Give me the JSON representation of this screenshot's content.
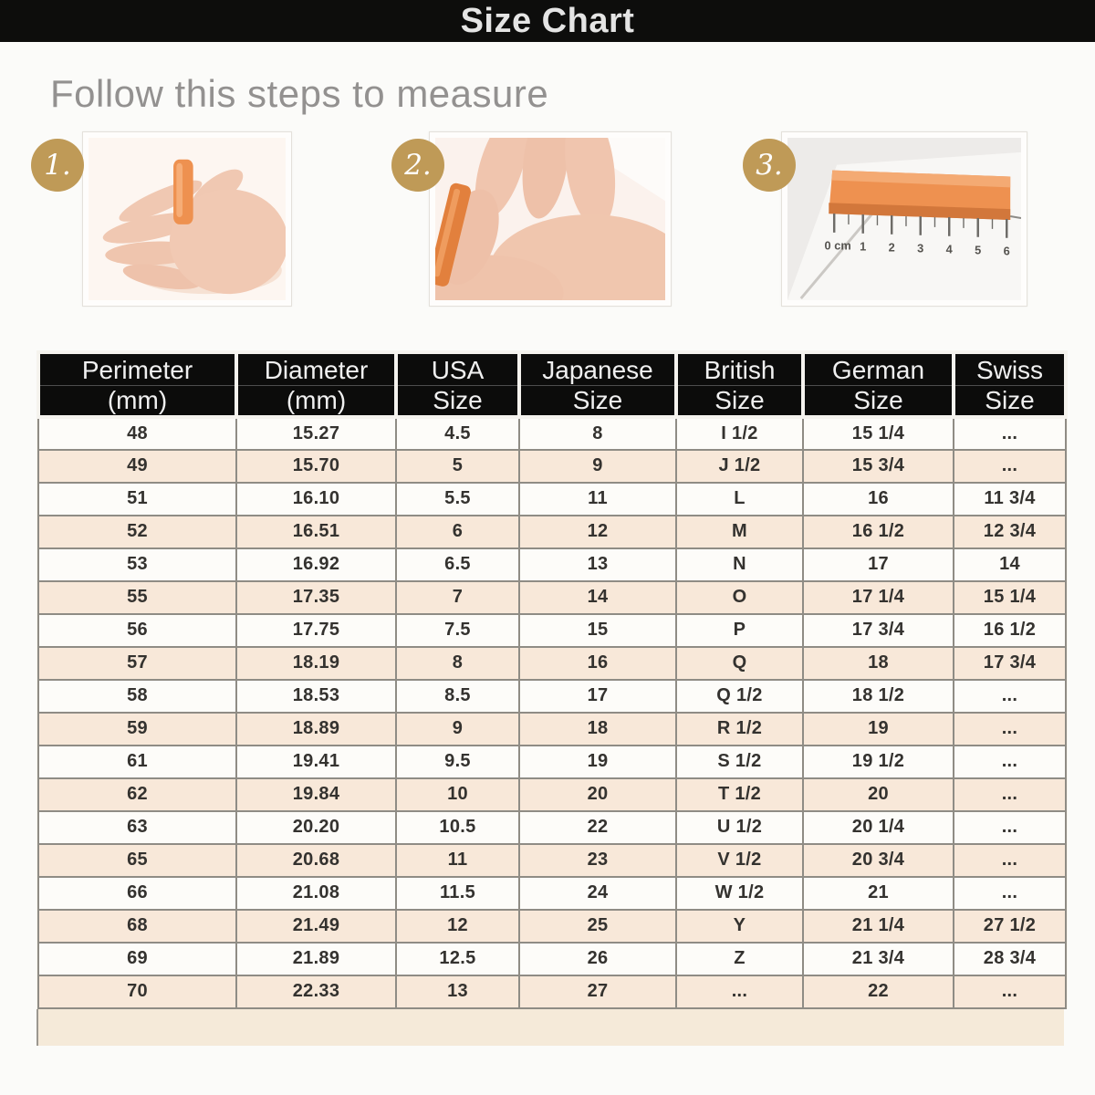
{
  "page": {
    "title": "Size Chart"
  },
  "intro": {
    "heading": "Follow this steps to measure"
  },
  "steps": [
    {
      "number": "1."
    },
    {
      "number": "2."
    },
    {
      "number": "3.",
      "ruler_labels": [
        "0 cm",
        "1",
        "2",
        "3",
        "4",
        "5",
        "6"
      ]
    }
  ],
  "table": {
    "columns": [
      {
        "line1": "Perimeter",
        "line2": "(mm)"
      },
      {
        "line1": "Diameter",
        "line2": "(mm)"
      },
      {
        "line1": "USA",
        "line2": "Size"
      },
      {
        "line1": "Japanese",
        "line2": "Size"
      },
      {
        "line1": "British",
        "line2": "Size"
      },
      {
        "line1": "German",
        "line2": "Size"
      },
      {
        "line1": "Swiss",
        "line2": "Size"
      }
    ],
    "rows": [
      [
        "48",
        "15.27",
        "4.5",
        "8",
        "I 1/2",
        "15 1/4",
        "..."
      ],
      [
        "49",
        "15.70",
        "5",
        "9",
        "J 1/2",
        "15 3/4",
        "..."
      ],
      [
        "51",
        "16.10",
        "5.5",
        "11",
        "L",
        "16",
        "11 3/4"
      ],
      [
        "52",
        "16.51",
        "6",
        "12",
        "M",
        "16 1/2",
        "12 3/4"
      ],
      [
        "53",
        "16.92",
        "6.5",
        "13",
        "N",
        "17",
        "14"
      ],
      [
        "55",
        "17.35",
        "7",
        "14",
        "O",
        "17 1/4",
        "15 1/4"
      ],
      [
        "56",
        "17.75",
        "7.5",
        "15",
        "P",
        "17 3/4",
        "16 1/2"
      ],
      [
        "57",
        "18.19",
        "8",
        "16",
        "Q",
        "18",
        "17 3/4"
      ],
      [
        "58",
        "18.53",
        "8.5",
        "17",
        "Q 1/2",
        "18 1/2",
        "..."
      ],
      [
        "59",
        "18.89",
        "9",
        "18",
        "R 1/2",
        "19",
        "..."
      ],
      [
        "61",
        "19.41",
        "9.5",
        "19",
        "S 1/2",
        "19 1/2",
        "..."
      ],
      [
        "62",
        "19.84",
        "10",
        "20",
        "T 1/2",
        "20",
        "..."
      ],
      [
        "63",
        "20.20",
        "10.5",
        "22",
        "U 1/2",
        "20 1/4",
        "..."
      ],
      [
        "65",
        "20.68",
        "11",
        "23",
        "V 1/2",
        "20 3/4",
        "..."
      ],
      [
        "66",
        "21.08",
        "11.5",
        "24",
        "W 1/2",
        "21",
        "..."
      ],
      [
        "68",
        "21.49",
        "12",
        "25",
        "Y",
        "21 1/4",
        "27 1/2"
      ],
      [
        "69",
        "21.89",
        "12.5",
        "26",
        "Z",
        "21 3/4",
        "28 3/4"
      ],
      [
        "70",
        "22.33",
        "13",
        "27",
        "...",
        "22",
        "..."
      ]
    ]
  },
  "colors": {
    "top_bar": "#0d0d0c",
    "header_cell": "#0c0c0b",
    "stripe_pink": "#f8e8d9",
    "stripe_white": "#fdfcf9",
    "badge_gold": "#bf9a57",
    "tape_orange": "#ee9150"
  }
}
